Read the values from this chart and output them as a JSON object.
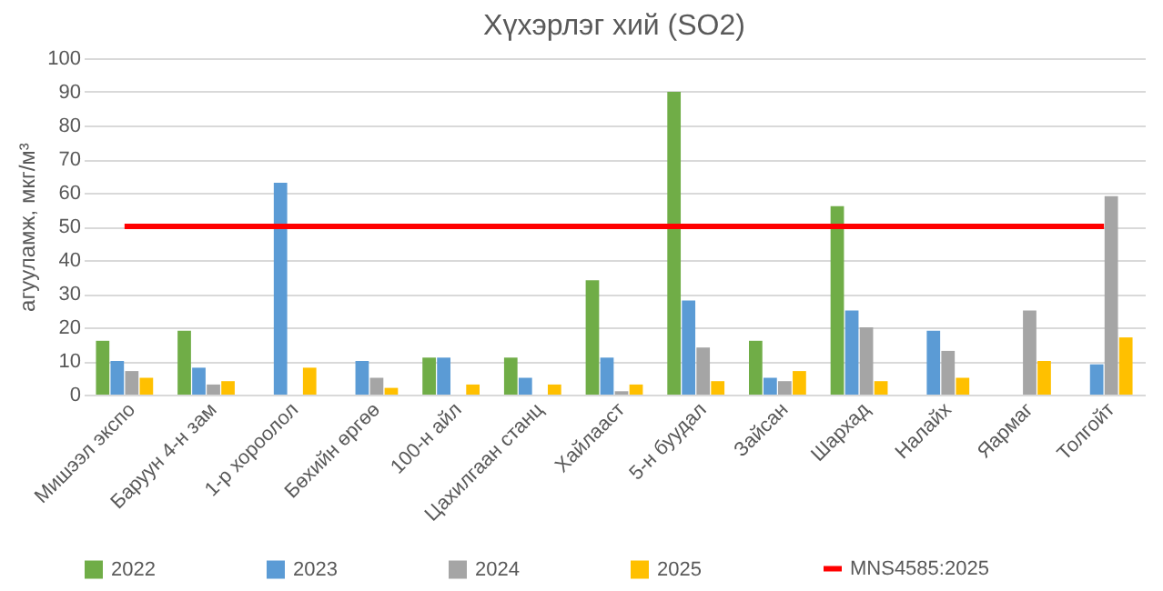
{
  "chart_data": {
    "type": "bar",
    "title": "Хүхэрлэг хий (SO2)",
    "ylabel": "агууламж, мкг/м³",
    "categories": [
      "Мишээл экспо",
      "Баруун 4-н зам",
      "1-р хороолол",
      "Бөхийн өргөө",
      "100-н айл",
      "Цахилгаан станц",
      "Хайлааст",
      "5-н буудал",
      "Зайсан",
      "Шархад",
      "Налайх",
      "Яармаг",
      "Толгойт"
    ],
    "series": [
      {
        "name": "2022",
        "color": "#70ad47",
        "values": [
          16,
          19,
          null,
          null,
          11,
          11,
          34,
          90,
          16,
          56,
          null,
          null,
          null
        ]
      },
      {
        "name": "2023",
        "color": "#5b9bd5",
        "values": [
          10,
          8,
          63,
          10,
          11,
          5,
          11,
          28,
          5,
          25,
          19,
          null,
          9
        ]
      },
      {
        "name": "2024",
        "color": "#a5a5a5",
        "values": [
          7,
          3,
          null,
          5,
          null,
          null,
          1,
          14,
          4,
          20,
          13,
          25,
          59
        ]
      },
      {
        "name": "2025",
        "color": "#ffc000",
        "values": [
          5,
          4,
          8,
          2,
          3,
          3,
          3,
          4,
          7,
          4,
          5,
          10,
          17
        ]
      },
      {
        "name": "MNS4585:2025",
        "type": "line",
        "color": "#ff0000",
        "values": [
          50,
          50,
          50,
          50,
          50,
          50,
          50,
          50,
          50,
          50,
          50,
          50,
          50
        ]
      }
    ],
    "ylim": [
      0,
      100
    ],
    "yticks": [
      0,
      10,
      20,
      30,
      40,
      50,
      60,
      70,
      80,
      90,
      100
    ],
    "grid": "y",
    "legend": "bottom"
  }
}
